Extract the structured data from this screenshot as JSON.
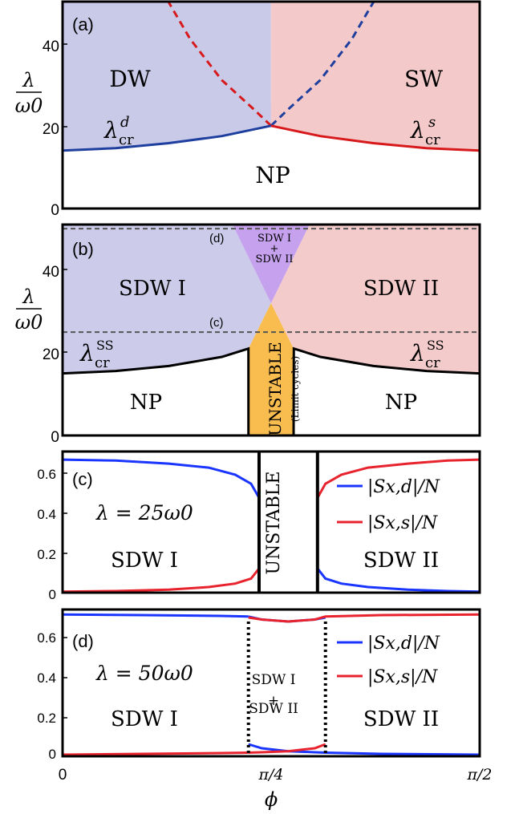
{
  "colors": {
    "dw_fill": "#c9c9e8",
    "sw_fill": "#f4c9c9",
    "sdw1_fill": "#cccbea",
    "sdw2_fill": "#f4cbcb",
    "overlap_fill": "#c6a1ee",
    "unstable_fill": "#f9bd4f",
    "blue": "#1f3f9f",
    "blue_line": "#1a35ff",
    "red": "#d7191c",
    "red_line": "#e8232d",
    "axis": "#000000"
  },
  "chart_data": [
    {
      "panel": "a",
      "type": "area",
      "panel_label": "(a)",
      "ylabel_num": "λ",
      "ylabel_den": "ω0",
      "xlim": [
        0,
        1.5708
      ],
      "ylim": [
        0,
        50
      ],
      "yticks": [
        "0",
        "20",
        "40"
      ],
      "ytick_values": [
        0,
        20,
        40
      ],
      "regions": {
        "left": "DW",
        "right": "SW",
        "bottom": "NP"
      },
      "curve_labels": {
        "left_base": "λ",
        "left_sub": "cr",
        "left_sup": "d",
        "right_base": "λ",
        "right_sub": "cr",
        "right_sup": "s"
      },
      "series": [
        {
          "color": "blue",
          "x": [
            0,
            0.2,
            0.4,
            0.6,
            0.785
          ],
          "y": [
            14,
            14.6,
            15.8,
            17.5,
            20
          ]
        },
        {
          "color": "red",
          "x": [
            0.785,
            0.97,
            1.17,
            1.37,
            1.5708
          ],
          "y": [
            20,
            17.5,
            15.8,
            14.6,
            14
          ]
        }
      ]
    },
    {
      "panel": "b",
      "type": "area",
      "panel_label": "(b)",
      "ylabel_num": "λ",
      "ylabel_den": "ω0",
      "xlim": [
        0,
        1.5708
      ],
      "ylim": [
        0,
        51
      ],
      "yticks": [
        "0",
        "20",
        "40"
      ],
      "ytick_values": [
        0,
        20,
        40
      ],
      "regions": {
        "left": "SDW I",
        "right": "SDW II",
        "bottom_left": "NP",
        "bottom_right": "NP",
        "unstable": "UNSTABLE",
        "unstable_sub": "(Limit cycles)",
        "overlap_top": "SDW I",
        "overlap_plus": "+",
        "overlap_bottom": "SDW II"
      },
      "dashed_lines": [
        {
          "label": "(d)",
          "y": 50
        },
        {
          "label": "(c)",
          "y": 25
        }
      ],
      "curve_labels": {
        "base": "λ",
        "sub": "cr",
        "sup": "SS"
      },
      "boundary": {
        "x": [
          0,
          0.2,
          0.4,
          0.6,
          0.7
        ],
        "y": [
          15,
          15.6,
          16.8,
          19,
          21
        ]
      },
      "unstable_x": [
        0.7,
        0.87
      ]
    },
    {
      "panel": "c",
      "type": "line",
      "panel_label": "(c)",
      "lambda_text": "λ = 25ω0",
      "xlim": [
        0,
        1.5708
      ],
      "ylim": [
        0,
        0.7
      ],
      "yticks": [
        "0",
        "0.2",
        "0.4",
        "0.6"
      ],
      "ytick_values": [
        0,
        0.2,
        0.4,
        0.6
      ],
      "regions": {
        "left": "SDW I",
        "right": "SDW II",
        "middle": "UNSTABLE"
      },
      "legend": [
        "|Sx,d|/N",
        "|Sx,s|/N"
      ],
      "unstable_x": [
        0.74,
        0.96
      ],
      "series": [
        {
          "name": "|Sx,d|/N",
          "color": "blue_line",
          "x": [
            0,
            0.2,
            0.4,
            0.55,
            0.65,
            0.71,
            0.74,
            0.96,
            0.99,
            1.05,
            1.15,
            1.3,
            1.45,
            1.5708
          ],
          "y": [
            0.66,
            0.655,
            0.64,
            0.62,
            0.585,
            0.54,
            0.47,
            0.12,
            0.07,
            0.045,
            0.028,
            0.015,
            0.008,
            0.005
          ]
        },
        {
          "name": "|Sx,s|/N",
          "color": "red_line",
          "x": [
            0,
            0.2,
            0.4,
            0.55,
            0.65,
            0.71,
            0.74,
            0.96,
            0.99,
            1.05,
            1.15,
            1.3,
            1.45,
            1.5708
          ],
          "y": [
            0.005,
            0.008,
            0.015,
            0.028,
            0.045,
            0.07,
            0.12,
            0.47,
            0.54,
            0.585,
            0.62,
            0.64,
            0.655,
            0.66
          ]
        }
      ]
    },
    {
      "panel": "d",
      "type": "line",
      "panel_label": "(d)",
      "lambda_text": "λ = 50ω0",
      "xlim": [
        0,
        1.5708
      ],
      "ylim": [
        0,
        0.73
      ],
      "yticks": [
        "0",
        "0.2",
        "0.4",
        "0.6"
      ],
      "ytick_values": [
        0,
        0.2,
        0.4,
        0.6
      ],
      "xticks": [
        "0",
        "π/4",
        "π/2"
      ],
      "xtick_values": [
        0,
        0.7854,
        1.5708
      ],
      "xlabel": "ϕ",
      "regions": {
        "left": "SDW I",
        "right": "SDW II",
        "middle_top": "SDW I",
        "middle_plus": "+",
        "middle_bottom": "SDW II"
      },
      "legend": [
        "|Sx,d|/N",
        "|Sx,s|/N"
      ],
      "overlap_x": [
        0.7,
        0.99
      ],
      "series": [
        {
          "name": "|Sx,d|/N",
          "color": "blue_line",
          "x": [
            0,
            0.3,
            0.6,
            0.7
          ],
          "y": [
            0.705,
            0.702,
            0.698,
            0.695
          ]
        },
        {
          "name": "|Sx,d|/N",
          "color": "blue_line",
          "x": [
            0.7,
            0.75,
            0.85,
            0.95,
            0.99
          ],
          "y": [
            0.695,
            0.68,
            0.67,
            0.68,
            0.69
          ]
        },
        {
          "name": "|Sx,d|/N",
          "color": "blue_line",
          "x": [
            0.7,
            0.75,
            0.85,
            0.95,
            0.99,
            1.2,
            1.5708
          ],
          "y": [
            0.06,
            0.04,
            0.025,
            0.02,
            0.018,
            0.012,
            0.008
          ]
        },
        {
          "name": "|Sx,s|/N",
          "color": "red_line",
          "x": [
            0,
            0.3,
            0.6,
            0.7
          ],
          "y": [
            0.008,
            0.012,
            0.016,
            0.018
          ]
        },
        {
          "name": "|Sx,s|/N",
          "color": "red_line",
          "x": [
            0.7,
            0.75,
            0.85,
            0.95,
            0.99
          ],
          "y": [
            0.018,
            0.02,
            0.025,
            0.04,
            0.06
          ]
        },
        {
          "name": "|Sx,s|/N",
          "color": "red_line",
          "x": [
            0.7,
            0.75,
            0.85,
            0.95,
            0.99,
            1.2,
            1.5708
          ],
          "y": [
            0.69,
            0.68,
            0.67,
            0.68,
            0.695,
            0.702,
            0.705
          ]
        }
      ]
    }
  ]
}
